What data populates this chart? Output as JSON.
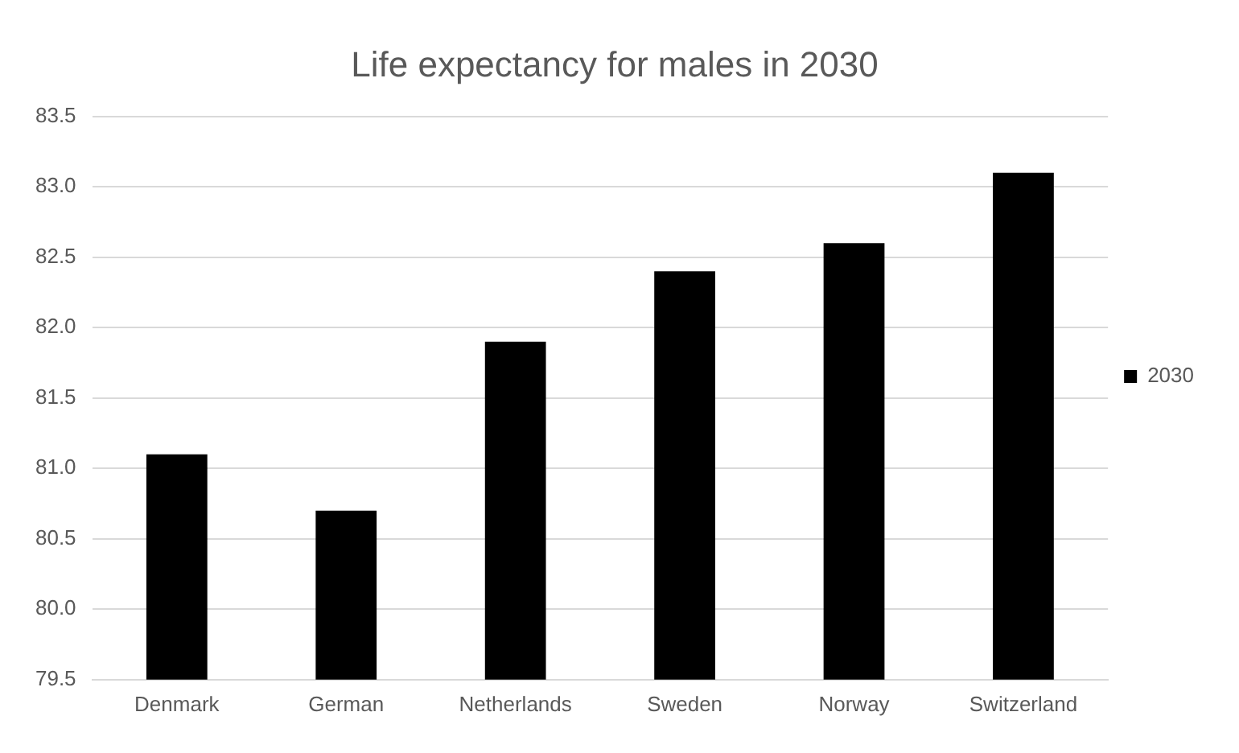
{
  "chart_data": {
    "type": "bar",
    "title": "Life expectancy for males in 2030",
    "categories": [
      "Denmark",
      "German",
      "Netherlands",
      "Sweden",
      "Norway",
      "Switzerland"
    ],
    "series": [
      {
        "name": "2030",
        "color": "#000000",
        "values": [
          81.1,
          80.7,
          81.9,
          82.4,
          82.6,
          83.1
        ]
      }
    ],
    "ylim": [
      79.5,
      83.5
    ],
    "yticks": [
      79.5,
      {
        "value": 80,
        "label": "80.0"
      },
      80.5,
      {
        "value": 81,
        "label": "81.0"
      },
      81.5,
      {
        "value": 82,
        "label": "82.0"
      },
      82.5,
      {
        "value": 83,
        "label": "83.0"
      },
      83.5
    ],
    "grid": "y",
    "legend": "right"
  }
}
